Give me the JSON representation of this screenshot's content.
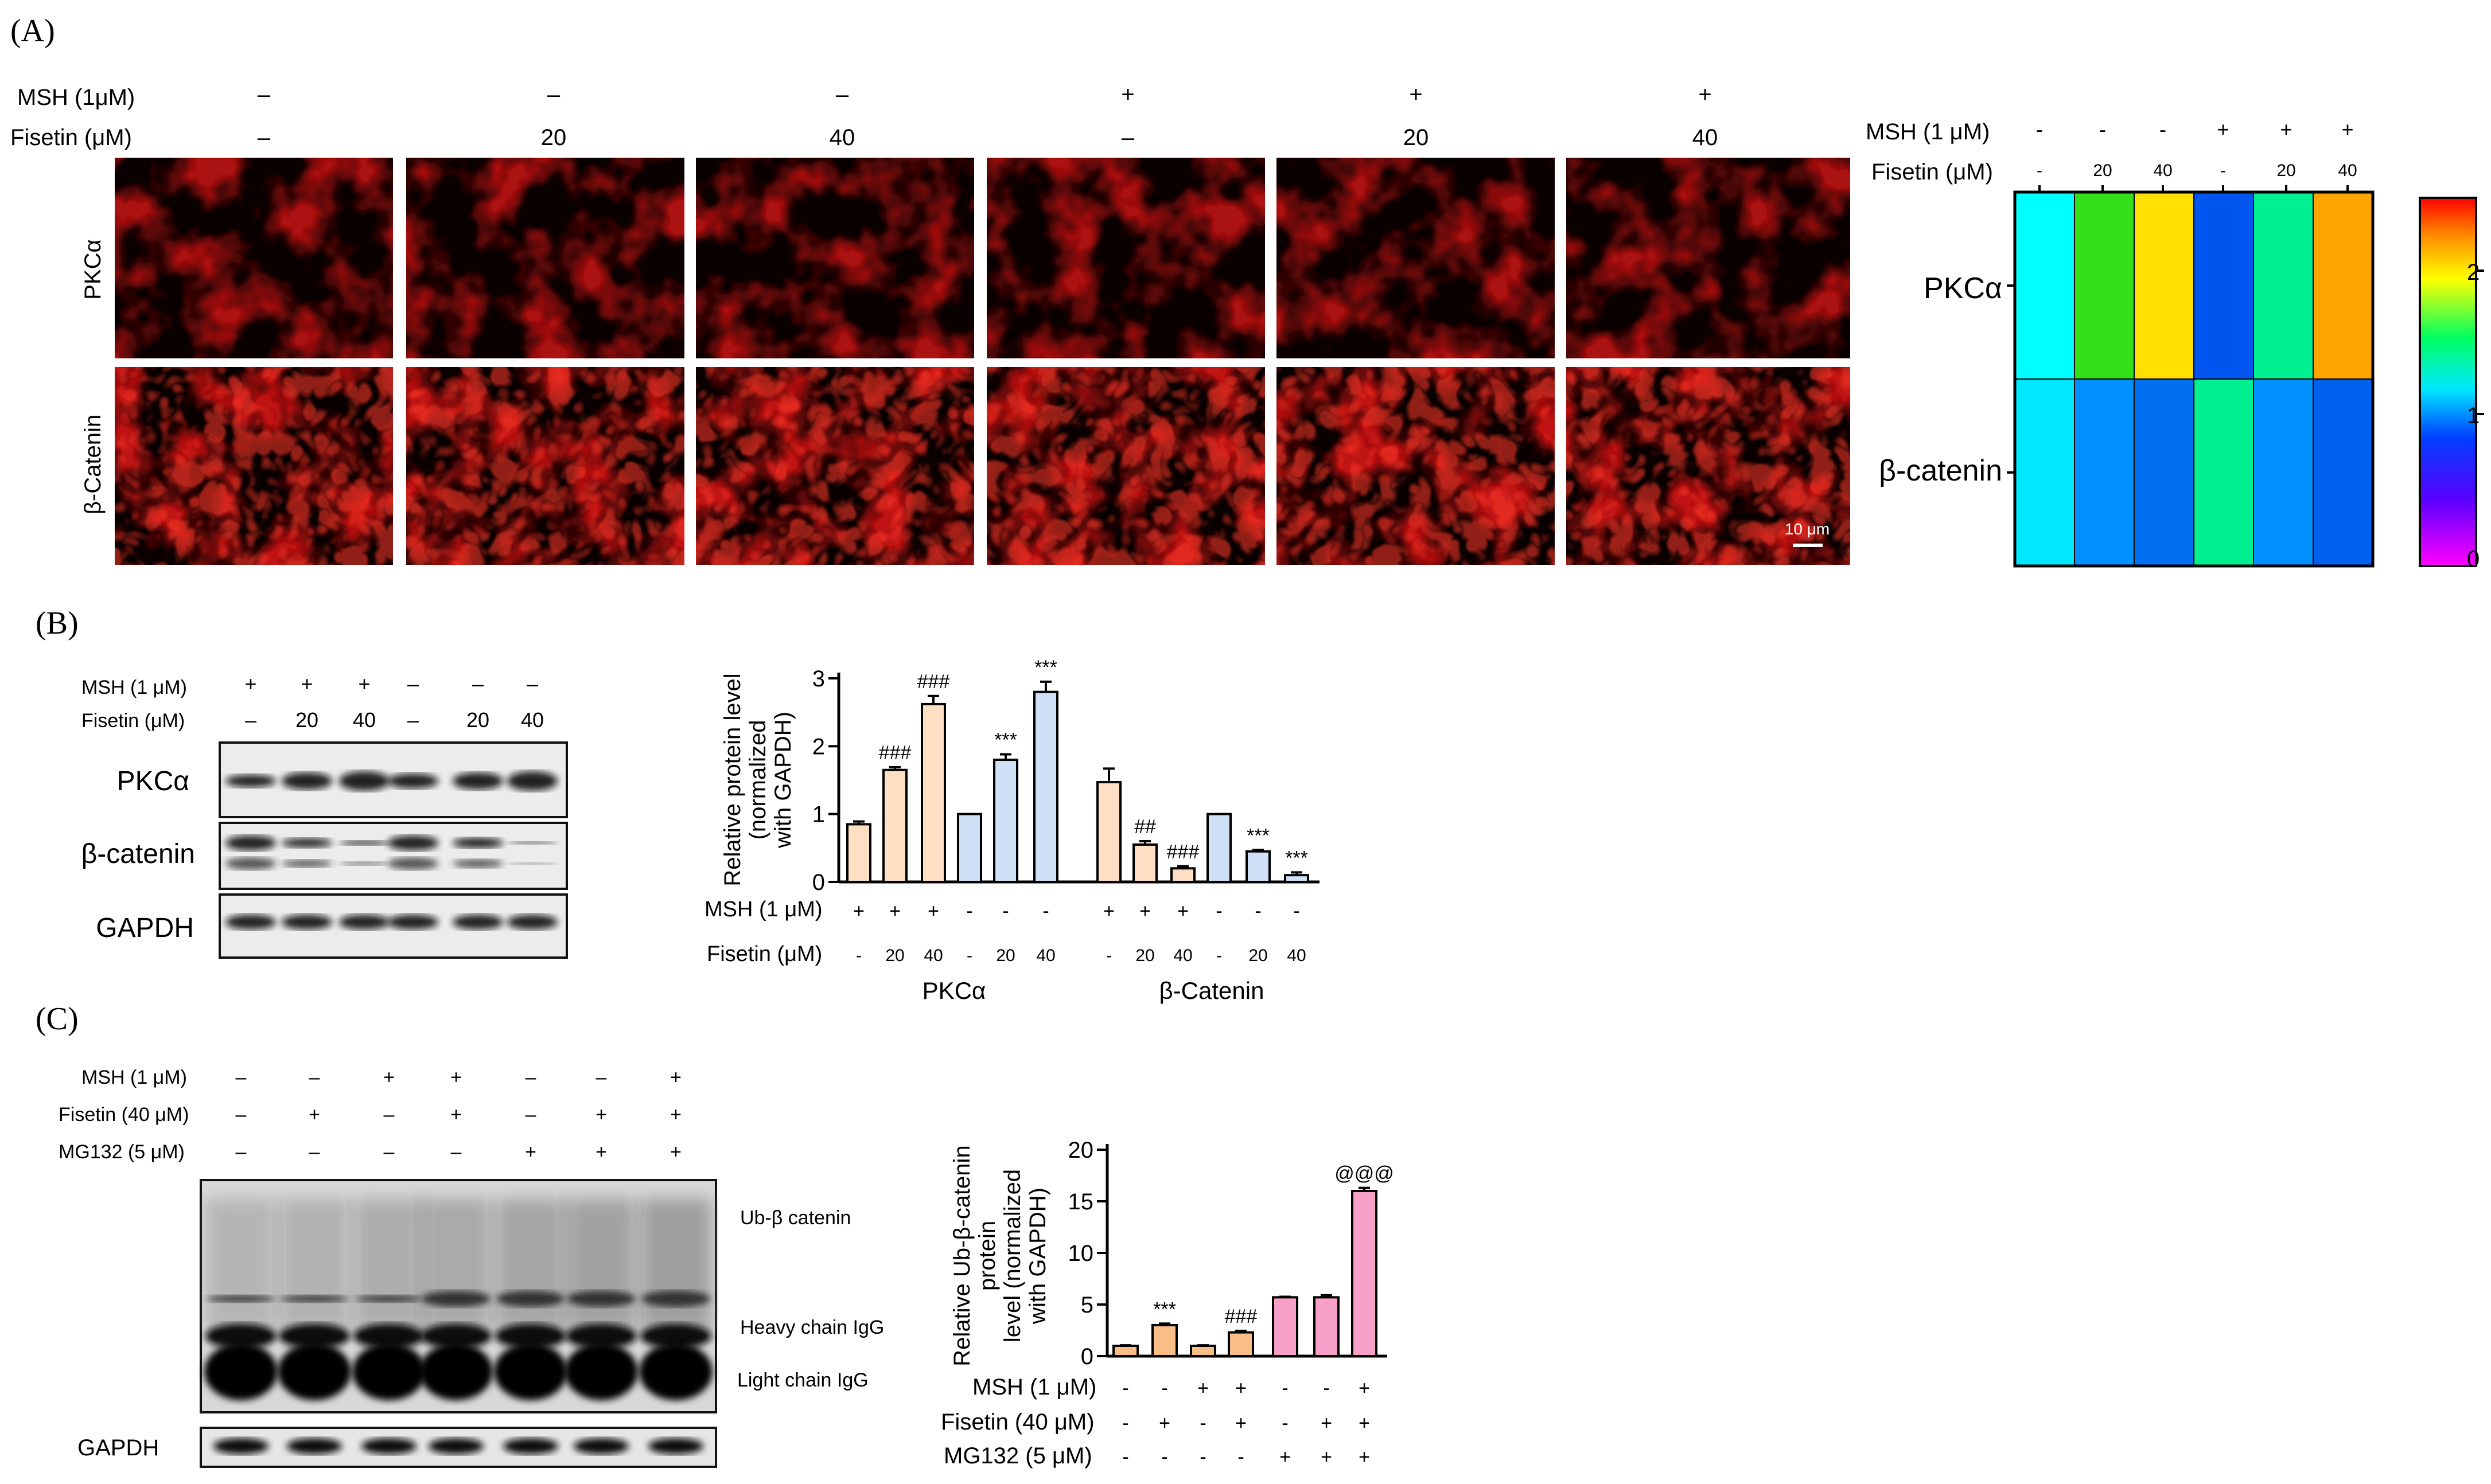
{
  "panelA": {
    "letter": "(A)",
    "msh_label": "MSH (1μM)",
    "fisetin_label": "Fisetin (μM)",
    "msh_signs": [
      "–",
      "–",
      "–",
      "+",
      "+",
      "+"
    ],
    "fisetin_values": [
      "–",
      "20",
      "40",
      "–",
      "20",
      "40"
    ],
    "row_labels": [
      "PKCα",
      "β-Catenin"
    ],
    "scale_bar": "10 μm",
    "heatmap": {
      "msh_label": "MSH (1 μM)",
      "fisetin_label": "Fisetin (μM)",
      "msh_signs": [
        "-",
        "-",
        "-",
        "+",
        "+",
        "+"
      ],
      "fisetin_values": [
        "-",
        "20",
        "40",
        "-",
        "20",
        "40"
      ],
      "row_labels": [
        "PKCα",
        "β-catenin"
      ],
      "colorbar_ticks": [
        "2",
        "1",
        "0"
      ]
    }
  },
  "panelB": {
    "letter": "(B)",
    "msh_label": "MSH (1 μM)",
    "fisetin_label": "Fisetin (μM)",
    "msh_signs": [
      "+",
      "+",
      "+",
      "–",
      "–",
      "–"
    ],
    "fisetin_values": [
      "–",
      "20",
      "40",
      "–",
      "20",
      "40"
    ],
    "blot_labels": [
      "PKCα",
      "β-catenin",
      "GAPDH"
    ],
    "chart_msh_label": "MSH (1 μM)",
    "chart_fisetin_label": "Fisetin (μM)",
    "chart_msh_signs": [
      "+",
      "+",
      "+",
      "-",
      "-",
      "-",
      "+",
      "+",
      "+",
      "-",
      "-",
      "-"
    ],
    "chart_fisetin_values": [
      "-",
      "20",
      "40",
      "-",
      "20",
      "40",
      "-",
      "20",
      "40",
      "-",
      "20",
      "40"
    ],
    "group_labels": [
      "PKCα",
      "β-Catenin"
    ]
  },
  "panelC": {
    "letter": "(C)",
    "msh_label": "MSH (1 μM)",
    "fisetin_label": "Fisetin (40 μM)",
    "mg132_label": "MG132 (5 μM)",
    "msh_signs": [
      "–",
      "–",
      "+",
      "+",
      "–",
      "–",
      "+"
    ],
    "fisetin_signs": [
      "–",
      "+",
      "–",
      "+",
      "–",
      "+",
      "+"
    ],
    "mg132_signs": [
      "–",
      "–",
      "–",
      "–",
      "+",
      "+",
      "+"
    ],
    "band_labels": [
      "Ub-β catenin",
      "Heavy chain IgG",
      "Light chain IgG"
    ],
    "gapdh_label": "GAPDH",
    "chart_msh_label": "MSH (1 μM)",
    "chart_fisetin_label": "Fisetin (40 μM)",
    "chart_mg132_label": "MG132 (5 μM)",
    "chart_msh_signs": [
      "-",
      "-",
      "+",
      "+",
      "-",
      "-",
      "+"
    ],
    "chart_fisetin_signs": [
      "-",
      "+",
      "-",
      "+",
      "-",
      "+",
      "+"
    ],
    "chart_mg132_signs": [
      "-",
      "-",
      "-",
      "-",
      "+",
      "+",
      "+"
    ]
  },
  "colors": {
    "heat_pkc": [
      "#00ffff",
      "#33e01a",
      "#ffe000",
      "#0055ee",
      "#00f090",
      "#ffa500"
    ],
    "heat_cat": [
      "#00e8ff",
      "#0090ff",
      "#0070f0",
      "#00f090",
      "#0090ff",
      "#0060ee"
    ],
    "bar_orange": "#fde0c4",
    "bar_blue": "#cfe0f6",
    "bar_orange_c": "#f9bd86",
    "bar_pink_c": "#f6a0c8"
  },
  "chart_data": [
    {
      "type": "bar",
      "ylabel": "Relative protein level (normalized with GAPDH)",
      "ylim": [
        0,
        3
      ],
      "yticks": [
        0,
        1,
        2,
        3
      ],
      "values": [
        0.85,
        1.65,
        2.62,
        1.0,
        1.8,
        2.8,
        1.47,
        0.55,
        0.2,
        1.0,
        0.45,
        0.1
      ],
      "errors": [
        0.04,
        0.04,
        0.12,
        0.0,
        0.08,
        0.15,
        0.2,
        0.05,
        0.03,
        0.0,
        0.02,
        0.04
      ],
      "annotations": [
        "",
        "###",
        "###",
        "",
        "***",
        "***",
        "",
        "##",
        "###",
        "",
        "***",
        "***"
      ]
    },
    {
      "type": "bar",
      "ylabel": "Relative Ub-β-catenin protein level (normalized with GAPDH)",
      "ylim": [
        0,
        20
      ],
      "yticks": [
        0,
        5,
        10,
        15,
        20
      ],
      "values": [
        1.0,
        3.0,
        1.0,
        2.3,
        5.7,
        5.7,
        16.0
      ],
      "errors": [
        0.05,
        0.15,
        0.05,
        0.15,
        0.05,
        0.2,
        0.3
      ],
      "annotations": [
        "",
        "***",
        "",
        "###",
        "",
        "",
        "@@@"
      ]
    }
  ]
}
